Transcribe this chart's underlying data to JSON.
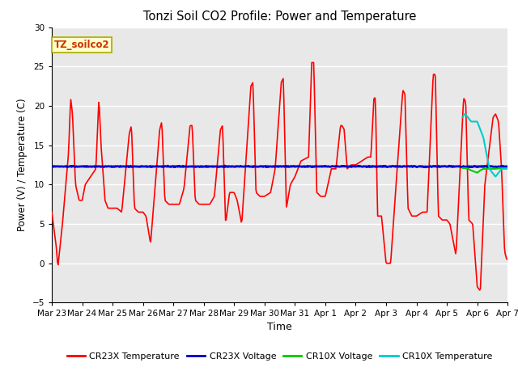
{
  "title": "Tonzi Soil CO2 Profile: Power and Temperature",
  "xlabel": "Time",
  "ylabel": "Power (V) / Temperature (C)",
  "ylim": [
    -5,
    30
  ],
  "yticks": [
    -5,
    0,
    5,
    10,
    15,
    20,
    25,
    30
  ],
  "fig_facecolor": "#ffffff",
  "plot_bg_color": "#e8e8e8",
  "legend_label": "TZ_soilco2",
  "series": {
    "CR23X_Temp": {
      "color": "#ff0000",
      "label": "CR23X Temperature",
      "lw": 1.2
    },
    "CR23X_Volt": {
      "color": "#0000cc",
      "label": "CR23X Voltage",
      "lw": 2.0
    },
    "CR10X_Volt": {
      "color": "#00cc00",
      "label": "CR10X Voltage",
      "lw": 1.5
    },
    "CR10X_Temp": {
      "color": "#00cccc",
      "label": "CR10X Temperature",
      "lw": 1.5
    }
  },
  "x_labels": [
    "Mar 23",
    "Mar 24",
    "Mar 25",
    "Mar 26",
    "Mar 27",
    "Mar 28",
    "Mar 29",
    "Mar 30",
    "Mar 31",
    "Apr 1",
    "Apr 2",
    "Apr 3",
    "Apr 4",
    "Apr 5",
    "Apr 6",
    "Apr 7"
  ],
  "n_days": 15,
  "figsize": [
    6.4,
    4.8
  ],
  "dpi": 100
}
